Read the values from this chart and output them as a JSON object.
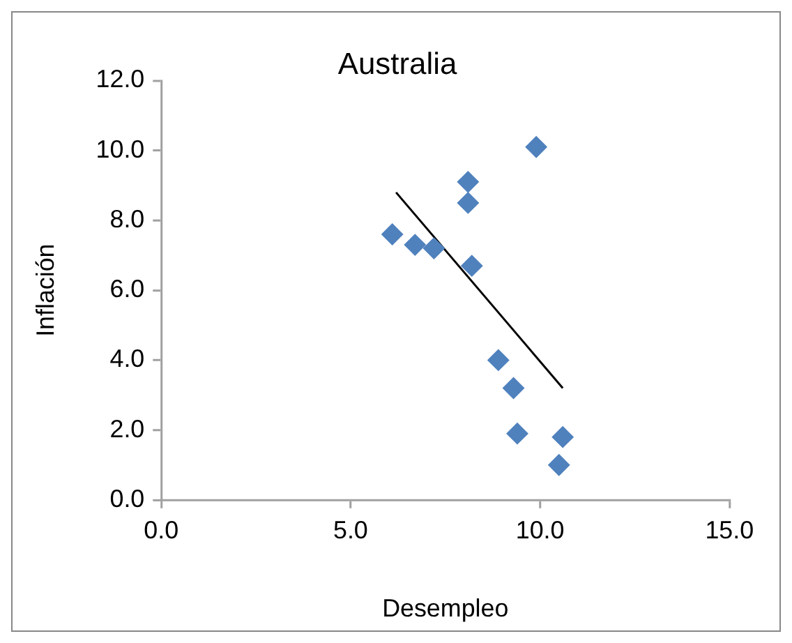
{
  "chart_data": {
    "type": "scatter",
    "title": "Australia",
    "xlabel": "Desempleo",
    "ylabel": "Inflación",
    "xlim": [
      0,
      15
    ],
    "ylim": [
      0,
      12
    ],
    "xticks": [
      {
        "value": 0,
        "label": "0.0"
      },
      {
        "value": 5,
        "label": "5.0"
      },
      {
        "value": 10,
        "label": "10.0"
      },
      {
        "value": 15,
        "label": "15.0"
      }
    ],
    "yticks": [
      {
        "value": 0,
        "label": "0.0"
      },
      {
        "value": 2,
        "label": "2.0"
      },
      {
        "value": 4,
        "label": "4.0"
      },
      {
        "value": 6,
        "label": "6.0"
      },
      {
        "value": 8,
        "label": "8.0"
      },
      {
        "value": 10,
        "label": "10.0"
      },
      {
        "value": 12,
        "label": "12.0"
      }
    ],
    "grid": false,
    "legend": false,
    "series": [
      {
        "marker": "diamond",
        "color": "#4f81bd",
        "x": [
          6.1,
          6.7,
          7.2,
          8.1,
          8.1,
          8.2,
          9.9,
          8.9,
          9.3,
          9.4,
          10.6,
          10.5
        ],
        "values": [
          7.6,
          7.3,
          7.2,
          9.1,
          8.5,
          6.7,
          10.1,
          4.0,
          3.2,
          1.9,
          1.8,
          1.0
        ]
      },
      {
        "type": "line",
        "marker": "none",
        "color": "#000000",
        "x": [
          6.2,
          10.6
        ],
        "values": [
          8.8,
          3.2
        ]
      }
    ]
  }
}
